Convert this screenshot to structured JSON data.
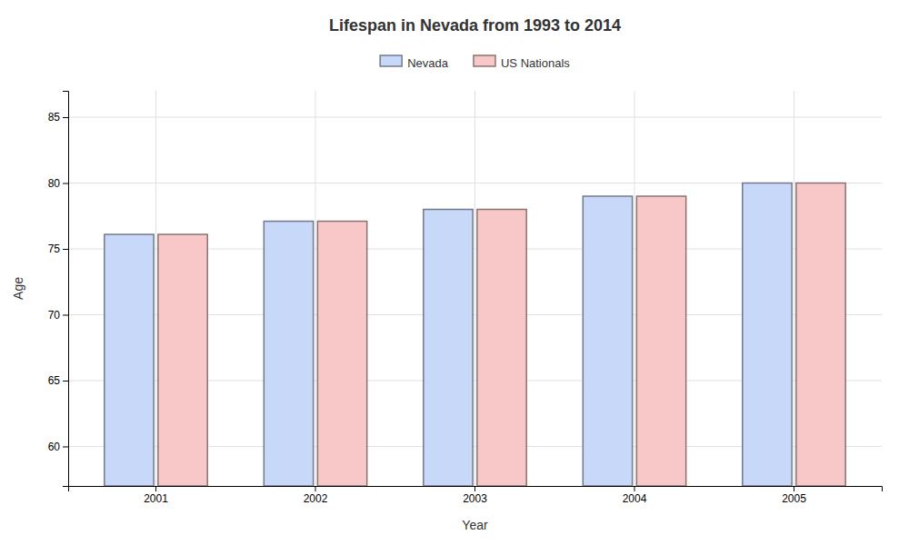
{
  "chart_data": {
    "type": "bar",
    "title": "Lifespan in Nevada from 1993 to 2014",
    "xlabel": "Year",
    "ylabel": "Age",
    "categories": [
      "2001",
      "2002",
      "2003",
      "2004",
      "2005"
    ],
    "series": [
      {
        "name": "Nevada",
        "color": "#c8d8f8",
        "values": [
          76.1,
          77.1,
          78.0,
          79.0,
          80.0
        ]
      },
      {
        "name": "US Nationals",
        "color": "#f8c8c8",
        "values": [
          76.1,
          77.1,
          78.0,
          79.0,
          80.0
        ]
      }
    ],
    "ylim": [
      57,
      87
    ],
    "yticks": [
      60,
      65,
      70,
      75,
      80,
      85
    ],
    "grid": true,
    "legend": "top"
  }
}
